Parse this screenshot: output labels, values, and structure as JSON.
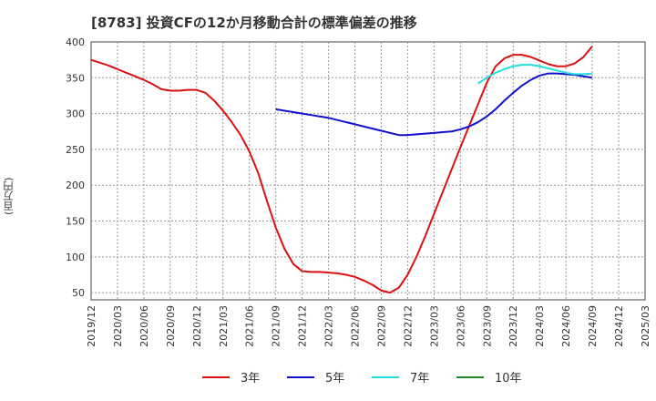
{
  "chart_data": {
    "type": "line",
    "title": "[8783]  投資CFの12か月移動合計の標準偏差の推移",
    "ylabel": "(百万円)",
    "xlabel": "",
    "ylim": [
      40,
      400
    ],
    "yticks": [
      50,
      100,
      150,
      200,
      250,
      300,
      350,
      400
    ],
    "xticks": [
      "2019/12",
      "2020/03",
      "2020/06",
      "2020/09",
      "2020/12",
      "2021/03",
      "2021/06",
      "2021/09",
      "2021/12",
      "2022/03",
      "2022/06",
      "2022/09",
      "2022/12",
      "2023/03",
      "2023/06",
      "2023/09",
      "2023/12",
      "2024/03",
      "2024/06",
      "2024/09",
      "2024/12",
      "2025/03"
    ],
    "grid": true,
    "legend_position": "bottom",
    "series": [
      {
        "name": "3年",
        "color": "#dd1111",
        "x": [
          "2019/12",
          "2020/01",
          "2020/02",
          "2020/03",
          "2020/04",
          "2020/05",
          "2020/06",
          "2020/07",
          "2020/08",
          "2020/09",
          "2020/10",
          "2020/11",
          "2020/12",
          "2021/01",
          "2021/02",
          "2021/03",
          "2021/04",
          "2021/05",
          "2021/06",
          "2021/07",
          "2021/08",
          "2021/09",
          "2021/10",
          "2021/11",
          "2021/12",
          "2022/01",
          "2022/02",
          "2022/03",
          "2022/04",
          "2022/05",
          "2022/06",
          "2022/07",
          "2022/08",
          "2022/09",
          "2022/10",
          "2022/11",
          "2022/12",
          "2023/01",
          "2023/02",
          "2023/03",
          "2023/04",
          "2023/05",
          "2023/06",
          "2023/07",
          "2023/08",
          "2023/09",
          "2023/10",
          "2023/11",
          "2023/12",
          "2024/01",
          "2024/02",
          "2024/03",
          "2024/04",
          "2024/05",
          "2024/06",
          "2024/07",
          "2024/08",
          "2024/09"
        ],
        "values": [
          375,
          371,
          367,
          362,
          357,
          352,
          347,
          341,
          334,
          332,
          332,
          333,
          333,
          329,
          318,
          304,
          288,
          270,
          247,
          217,
          178,
          141,
          111,
          90,
          80,
          79,
          79,
          78,
          77,
          75,
          72,
          67,
          61,
          53,
          50,
          57,
          75,
          100,
          129,
          160,
          191,
          222,
          253,
          283,
          313,
          343,
          366,
          377,
          382,
          382,
          379,
          374,
          369,
          366,
          366,
          370,
          379,
          394
        ]
      },
      {
        "name": "5年",
        "color": "#1111cc",
        "x": [
          "2021/09",
          "2021/10",
          "2021/11",
          "2021/12",
          "2022/01",
          "2022/02",
          "2022/03",
          "2022/04",
          "2022/05",
          "2022/06",
          "2022/07",
          "2022/08",
          "2022/09",
          "2022/10",
          "2022/11",
          "2022/12",
          "2023/01",
          "2023/02",
          "2023/03",
          "2023/04",
          "2023/05",
          "2023/06",
          "2023/07",
          "2023/08",
          "2023/09",
          "2023/10",
          "2023/11",
          "2023/12",
          "2024/01",
          "2024/02",
          "2024/03",
          "2024/04",
          "2024/05",
          "2024/06",
          "2024/07",
          "2024/08",
          "2024/09"
        ],
        "values": [
          306,
          304,
          302,
          300,
          298,
          296,
          294,
          291,
          288,
          285,
          282,
          279,
          276,
          273,
          270,
          270,
          271,
          272,
          273,
          274,
          275,
          278,
          282,
          288,
          296,
          306,
          318,
          329,
          339,
          347,
          353,
          356,
          356,
          355,
          354,
          352,
          350
        ]
      },
      {
        "name": "7年",
        "color": "#22dddd",
        "x": [
          "2023/08",
          "2023/09",
          "2023/10",
          "2023/11",
          "2023/12",
          "2024/01",
          "2024/02",
          "2024/03",
          "2024/04",
          "2024/05",
          "2024/06",
          "2024/07",
          "2024/08",
          "2024/09"
        ],
        "values": [
          342,
          350,
          357,
          362,
          366,
          368,
          368,
          366,
          363,
          360,
          357,
          355,
          355,
          356
        ]
      },
      {
        "name": "10年",
        "color": "#228822",
        "x": [],
        "values": []
      }
    ]
  }
}
